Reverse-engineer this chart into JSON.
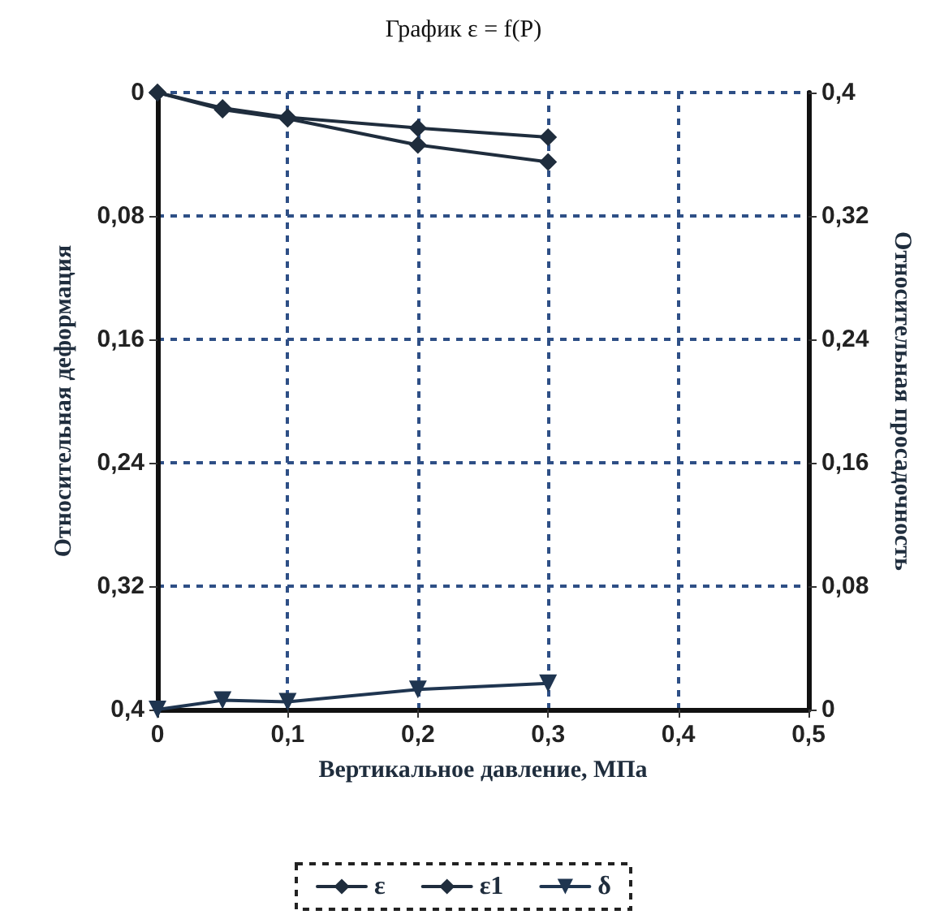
{
  "chart_data": {
    "type": "line",
    "title": "График ε = f(P)",
    "xlabel": "Вертикальное давление, МПа",
    "ylabel": "Относительная деформация",
    "y2label": "Относительная просадочность",
    "x": [
      0,
      0.05,
      0.1,
      0.2,
      0.3
    ],
    "series": [
      {
        "name": "ε",
        "color": "#1f2d3d",
        "values": [
          0,
          0.01,
          0.016,
          0.023,
          0.029
        ],
        "marker": "diamond"
      },
      {
        "name": "ε1",
        "color": "#1f2d3d",
        "values": [
          0,
          0.011,
          0.017,
          0.034,
          0.045
        ],
        "marker": "diamond"
      },
      {
        "name": "δ",
        "color": "#1f3550",
        "values": [
          0,
          0.006,
          0.005,
          0.013,
          0.017
        ],
        "axis": "y2",
        "marker": "triangle"
      }
    ],
    "xlim": [
      0,
      0.5
    ],
    "xticks": [
      0,
      {
        "value": 0.1,
        "label": "0,1"
      },
      {
        "value": 0.2,
        "label": "0,2"
      },
      {
        "value": 0.3,
        "label": "0,3"
      },
      {
        "value": 0.4,
        "label": "0,4"
      },
      {
        "value": 0.5,
        "label": "0,5"
      }
    ],
    "ylim": [
      0.4,
      0
    ],
    "yticks": [
      0,
      {
        "value": 0.08,
        "label": "0,08"
      },
      {
        "value": 0.16,
        "label": "0,16"
      },
      {
        "value": 0.24,
        "label": "0,24"
      },
      {
        "value": 0.32,
        "label": "0,32"
      },
      {
        "value": 0.4,
        "label": "0,4"
      }
    ],
    "y2lim": [
      0,
      0.4
    ],
    "y2ticks": [
      0,
      {
        "value": 0.08,
        "label": "0,08"
      },
      {
        "value": 0.16,
        "label": "0,16"
      },
      {
        "value": 0.24,
        "label": "0,24"
      },
      {
        "value": 0.32,
        "label": "0,32"
      },
      {
        "value": 0.4,
        "label": "0,4"
      }
    ],
    "grid": true,
    "legend": "bottom",
    "line_style": "solid"
  }
}
